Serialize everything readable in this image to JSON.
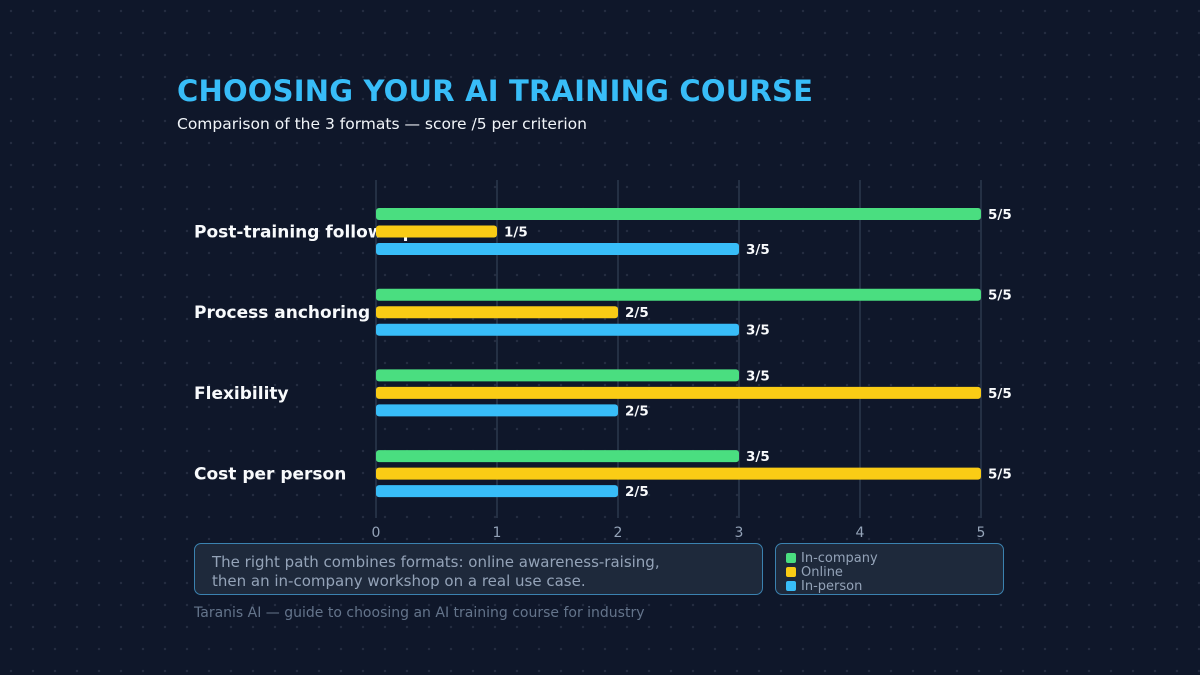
{
  "header": {
    "title": "CHOOSING YOUR AI TRAINING COURSE",
    "subtitle": "Comparison of the 3 formats — score /5 per criterion"
  },
  "note": {
    "line1": "The right path combines formats: online awareness-raising,",
    "line2": "then an in-company workshop on a real use case."
  },
  "footer": "Taranis AI — guide to choosing an AI training course for industry",
  "chart_data": {
    "type": "bar",
    "orientation": "horizontal",
    "categories": [
      "Post-training follow-up",
      "Process anchoring",
      "Flexibility",
      "Cost per person"
    ],
    "series": [
      {
        "name": "In-company",
        "color": "#4ade80",
        "values": [
          5,
          5,
          3,
          3
        ]
      },
      {
        "name": "Online",
        "color": "#facc15",
        "values": [
          1,
          2,
          5,
          5
        ]
      },
      {
        "name": "In-person",
        "color": "#38bdf8",
        "values": [
          3,
          3,
          2,
          2
        ]
      }
    ],
    "value_suffix": "/5",
    "xlim": [
      0,
      5
    ],
    "xticks": [
      0,
      1,
      2,
      3,
      4,
      5
    ],
    "grid": true,
    "legend_position": "bottom-right"
  }
}
